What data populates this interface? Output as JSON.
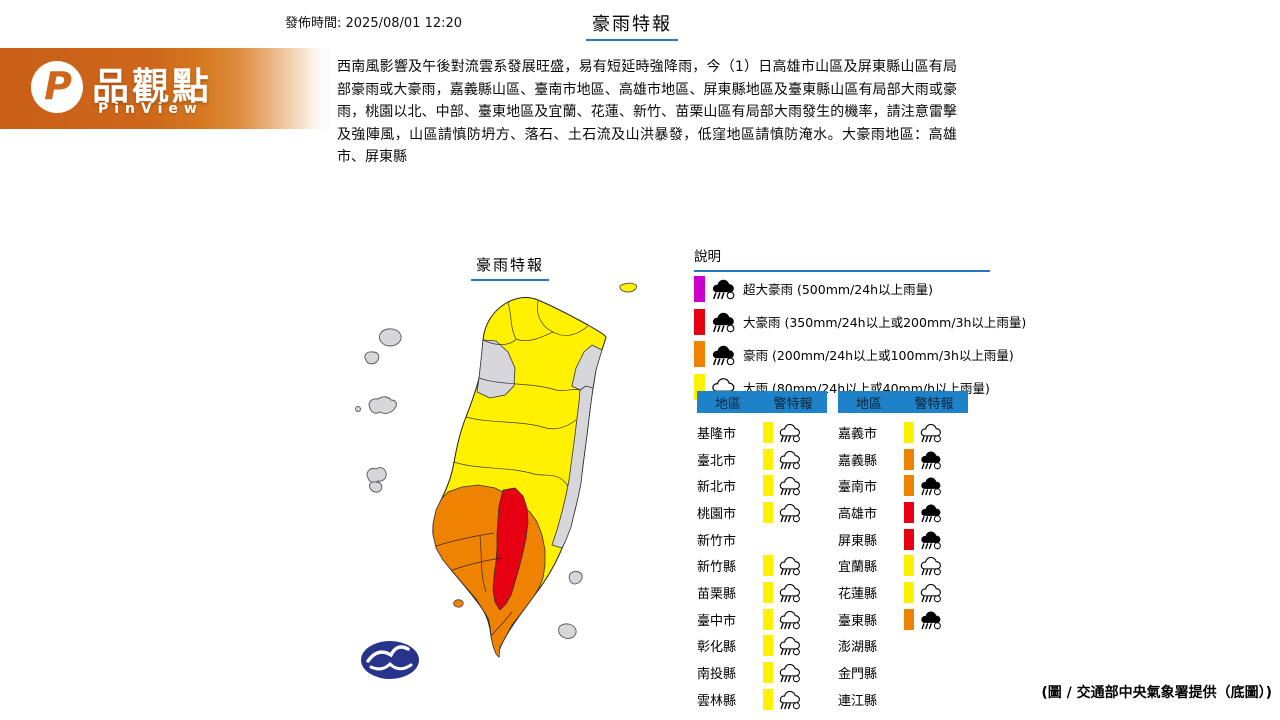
{
  "meta": {
    "published_label": "發佈時間: 2025/08/01 12:20",
    "title": "豪雨特報",
    "credit": "(圖 / 交通部中央氣象署提供（底圖）)"
  },
  "brand": {
    "name": "品觀點",
    "subtitle": "PinView",
    "logo_letter": "P",
    "banner_color": "#CE671B"
  },
  "article": {
    "text": "西南風影響及午後對流雲系發展旺盛，易有短延時強降雨，今（1）日高雄市山區及屏東縣山區有局部豪雨或大豪雨，嘉義縣山區、臺南市地區、高雄市地區、屏東縣地區及臺東縣山區有局部大雨或豪雨，桃園以北、中部、臺東地區及宜蘭、花蓮、新竹、苗栗山區有局部大雨發生的機率，請注意雷擊及強陣風，山區請慎防坍方、落石、土石流及山洪暴發，低窪地區請慎防淹水。大豪雨地區：高雄市、屏東縣"
  },
  "colors": {
    "rain": "#FFF100",
    "heavy": "#EF8200",
    "torrential": "#E60012",
    "extreme": "#CC00CC",
    "none": "#D6D6DB",
    "accent_blue": "#2577BE",
    "header_blue": "#1E82C8",
    "cwa_blue": "#27348B"
  },
  "map": {
    "label": "豪雨特報",
    "regions": {
      "main-island": "rain",
      "northwest-coast": "none",
      "northeast-coast": "none",
      "east-coast-strip": "none",
      "southwest": "heavy",
      "central-south-spine": "torrential",
      "matsu-island-a": "none",
      "matsu-island-b": "none",
      "penghu-north": "none",
      "penghu-dot": "none",
      "penghu-south-a": "none",
      "penghu-south-b": "none",
      "gueishan-island": "rain",
      "green-island": "none",
      "orchid-island": "none",
      "liuqiu-island": "heavy"
    }
  },
  "legend": {
    "title": "說明",
    "items": [
      {
        "level": "extreme",
        "icon": "heavy",
        "label": "超大豪雨 (500mm/24h以上雨量)"
      },
      {
        "level": "torrential",
        "icon": "heavy",
        "label": "大豪雨 (350mm/24h以上或200mm/3h以上雨量)"
      },
      {
        "level": "heavy",
        "icon": "heavy",
        "label": "豪雨 (200mm/24h以上或100mm/3h以上雨量)"
      },
      {
        "level": "rain",
        "icon": "light",
        "label": "大雨 (80mm/24h以上或40mm/h以上雨量)"
      }
    ]
  },
  "tables": {
    "headers": [
      "地區",
      "警特報"
    ],
    "left": [
      {
        "name": "基隆市",
        "level": "rain",
        "icon": "light"
      },
      {
        "name": "臺北市",
        "level": "rain",
        "icon": "light"
      },
      {
        "name": "新北市",
        "level": "rain",
        "icon": "light"
      },
      {
        "name": "桃園市",
        "level": "rain",
        "icon": "light"
      },
      {
        "name": "新竹市",
        "level": null,
        "icon": null
      },
      {
        "name": "新竹縣",
        "level": "rain",
        "icon": "light"
      },
      {
        "name": "苗栗縣",
        "level": "rain",
        "icon": "light"
      },
      {
        "name": "臺中市",
        "level": "rain",
        "icon": "light"
      },
      {
        "name": "彰化縣",
        "level": "rain",
        "icon": "light"
      },
      {
        "name": "南投縣",
        "level": "rain",
        "icon": "light"
      },
      {
        "name": "雲林縣",
        "level": "rain",
        "icon": "light"
      }
    ],
    "right": [
      {
        "name": "嘉義市",
        "level": "rain",
        "icon": "light"
      },
      {
        "name": "嘉義縣",
        "level": "heavy",
        "icon": "heavy"
      },
      {
        "name": "臺南市",
        "level": "heavy",
        "icon": "heavy"
      },
      {
        "name": "高雄市",
        "level": "torrential",
        "icon": "heavy"
      },
      {
        "name": "屏東縣",
        "level": "torrential",
        "icon": "heavy"
      },
      {
        "name": "宜蘭縣",
        "level": "rain",
        "icon": "light"
      },
      {
        "name": "花蓮縣",
        "level": "rain",
        "icon": "light"
      },
      {
        "name": "臺東縣",
        "level": "heavy",
        "icon": "heavy"
      },
      {
        "name": "澎湖縣",
        "level": null,
        "icon": null
      },
      {
        "name": "金門縣",
        "level": null,
        "icon": null
      },
      {
        "name": "連江縣",
        "level": null,
        "icon": null
      }
    ]
  }
}
